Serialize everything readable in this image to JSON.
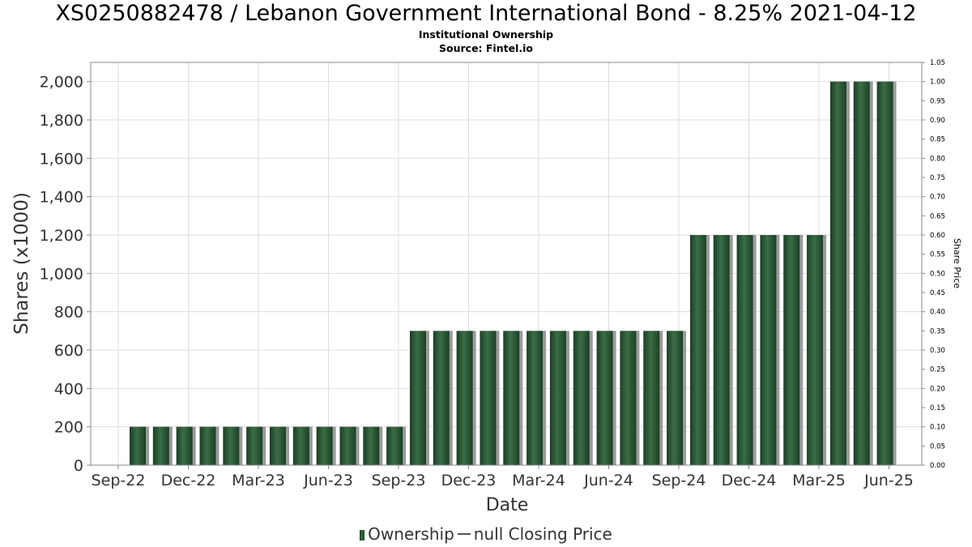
{
  "chart_data": {
    "type": "bar",
    "title": "XS0250882478 / Lebanon Government International Bond - 8.25% 2021-04-12",
    "subtitle": "Institutional Ownership",
    "source": "Source: Fintel.io",
    "xlabel": "Date",
    "ylabel": "Shares (x1000)",
    "y2label": "Share Price",
    "ylim": [
      0,
      2100
    ],
    "y2lim": [
      0,
      1.05
    ],
    "yticks": [
      "0",
      "200",
      "400",
      "600",
      "800",
      "1,000",
      "1,200",
      "1,400",
      "1,600",
      "1,800",
      "2,000"
    ],
    "y2ticks": [
      "0.00",
      "0.05",
      "0.10",
      "0.15",
      "0.20",
      "0.25",
      "0.30",
      "0.35",
      "0.40",
      "0.45",
      "0.50",
      "0.55",
      "0.60",
      "0.65",
      "0.70",
      "0.75",
      "0.80",
      "0.85",
      "0.90",
      "0.95",
      "1.00",
      "1.05"
    ],
    "xticks": [
      "Sep-22",
      "Dec-22",
      "Mar-23",
      "Jun-23",
      "Sep-23",
      "Dec-23",
      "Mar-24",
      "Jun-24",
      "Sep-24",
      "Dec-24",
      "Mar-25",
      "Jun-25"
    ],
    "values": [
      200,
      200,
      200,
      200,
      200,
      200,
      200,
      200,
      200,
      200,
      200,
      200,
      700,
      700,
      700,
      700,
      700,
      700,
      700,
      700,
      700,
      700,
      700,
      700,
      1200,
      1200,
      1200,
      1200,
      1200,
      1200,
      2000,
      2000,
      2000
    ],
    "grid": true,
    "legend": {
      "position": "bottom",
      "ownership_label": "Ownership",
      "price_label": "null Closing Price"
    },
    "colors": {
      "bar_dark": "#1b3f25",
      "bar_light": "#3a6e46",
      "bar_shadow": "#8a8a8a",
      "grid": "#dddddd"
    }
  }
}
